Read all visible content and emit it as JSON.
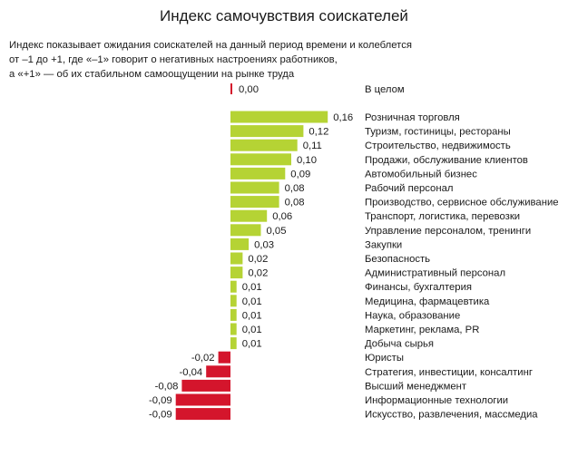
{
  "title": "Индекс самочувствия соискателей",
  "subtitle_lines": [
    "Индекс показывает ожидания соискателей на данный период времени и колеблется",
    "от –1 до +1, где «–1» говорит о негативных настроениях работников,",
    "а «+1» — об их стабильном самоощущении на рынке труда"
  ],
  "chart_data": {
    "type": "bar",
    "orientation": "horizontal",
    "title": "Индекс самочувствия соискателей",
    "colors": {
      "positive": "#b5d334",
      "negative": "#d4152c"
    },
    "summary": {
      "category": "В целом",
      "value": 0.0,
      "label": "0,00"
    },
    "categories": [
      "Розничная торговля",
      "Туризм, гостиницы, рестораны",
      "Строительство, недвижимость",
      "Продажи, обслуживание клиентов",
      "Автомобильный бизнес",
      "Рабочий персонал",
      "Производство, сервисное обслуживание",
      "Транспорт, логистика, перевозки",
      "Управление персоналом, тренинги",
      "Закупки",
      "Безопасность",
      "Административный персонал",
      "Финансы, бухгалтерия",
      "Медицина, фармацевтика",
      "Наука, образование",
      "Маркетинг, реклама, PR",
      "Добыча сырья",
      "Юристы",
      "Стратегия, инвестиции, консалтинг",
      "Высший менеджмент",
      "Информационные технологии",
      "Искусство, развлечения, массмедиа"
    ],
    "values": [
      0.16,
      0.12,
      0.11,
      0.1,
      0.09,
      0.08,
      0.08,
      0.06,
      0.05,
      0.03,
      0.02,
      0.02,
      0.01,
      0.01,
      0.01,
      0.01,
      0.01,
      -0.02,
      -0.04,
      -0.08,
      -0.09,
      -0.09
    ],
    "value_labels": [
      "0,16",
      "0,12",
      "0,11",
      "0,10",
      "0,09",
      "0,08",
      "0,08",
      "0,06",
      "0,05",
      "0,03",
      "0,02",
      "0,02",
      "0,01",
      "0,01",
      "0,01",
      "0,01",
      "0,01",
      "-0,02",
      "-0,04",
      "-0,08",
      "-0,09",
      "-0,09"
    ],
    "grid": false,
    "legend": "none"
  }
}
